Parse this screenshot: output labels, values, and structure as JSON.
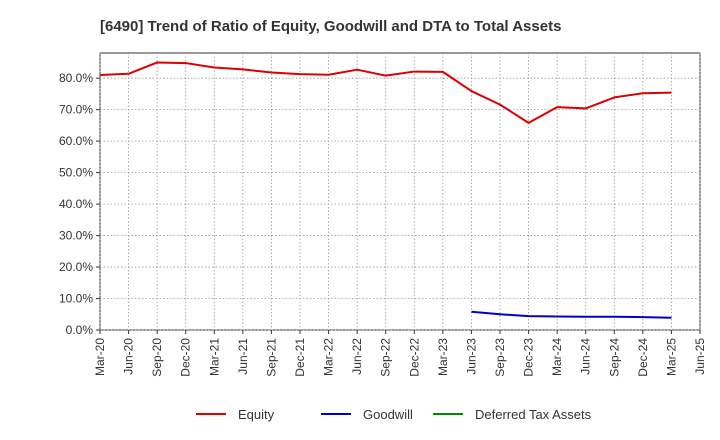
{
  "chart_data": {
    "type": "line",
    "title": "[6490]  Trend of Ratio of Equity, Goodwill and DTA to Total Assets",
    "xlabel": "",
    "ylabel": "",
    "ylim": [
      0,
      88
    ],
    "yticks": [
      "0.0%",
      "10.0%",
      "20.0%",
      "30.0%",
      "40.0%",
      "50.0%",
      "60.0%",
      "70.0%",
      "80.0%"
    ],
    "categories": [
      "Mar-20",
      "Jun-20",
      "Sep-20",
      "Dec-20",
      "Mar-21",
      "Jun-21",
      "Sep-21",
      "Dec-21",
      "Mar-22",
      "Jun-22",
      "Sep-22",
      "Dec-22",
      "Mar-23",
      "Jun-23",
      "Sep-23",
      "Dec-23",
      "Mar-24",
      "Jun-24",
      "Sep-24",
      "Dec-24",
      "Mar-25",
      "Jun-25"
    ],
    "grid": true,
    "legend_position": "bottom",
    "series": [
      {
        "name": "Equity",
        "color": "#dd0000",
        "values": [
          81.0,
          81.4,
          85.0,
          84.8,
          83.4,
          82.8,
          81.8,
          81.3,
          81.1,
          82.7,
          80.8,
          82.1,
          82.0,
          75.9,
          71.6,
          65.8,
          70.8,
          70.4,
          73.9,
          75.2,
          75.4,
          null
        ]
      },
      {
        "name": "Goodwill",
        "color": "#0000cc",
        "values": [
          null,
          null,
          null,
          null,
          null,
          null,
          null,
          null,
          null,
          null,
          null,
          null,
          null,
          5.8,
          5.0,
          4.4,
          4.3,
          4.2,
          4.2,
          4.1,
          3.9,
          null
        ]
      },
      {
        "name": "Deferred Tax Assets",
        "color": "#008800",
        "values": [
          null,
          null,
          null,
          null,
          null,
          null,
          null,
          null,
          null,
          null,
          null,
          null,
          null,
          null,
          null,
          null,
          null,
          null,
          null,
          null,
          null,
          null
        ]
      }
    ]
  }
}
